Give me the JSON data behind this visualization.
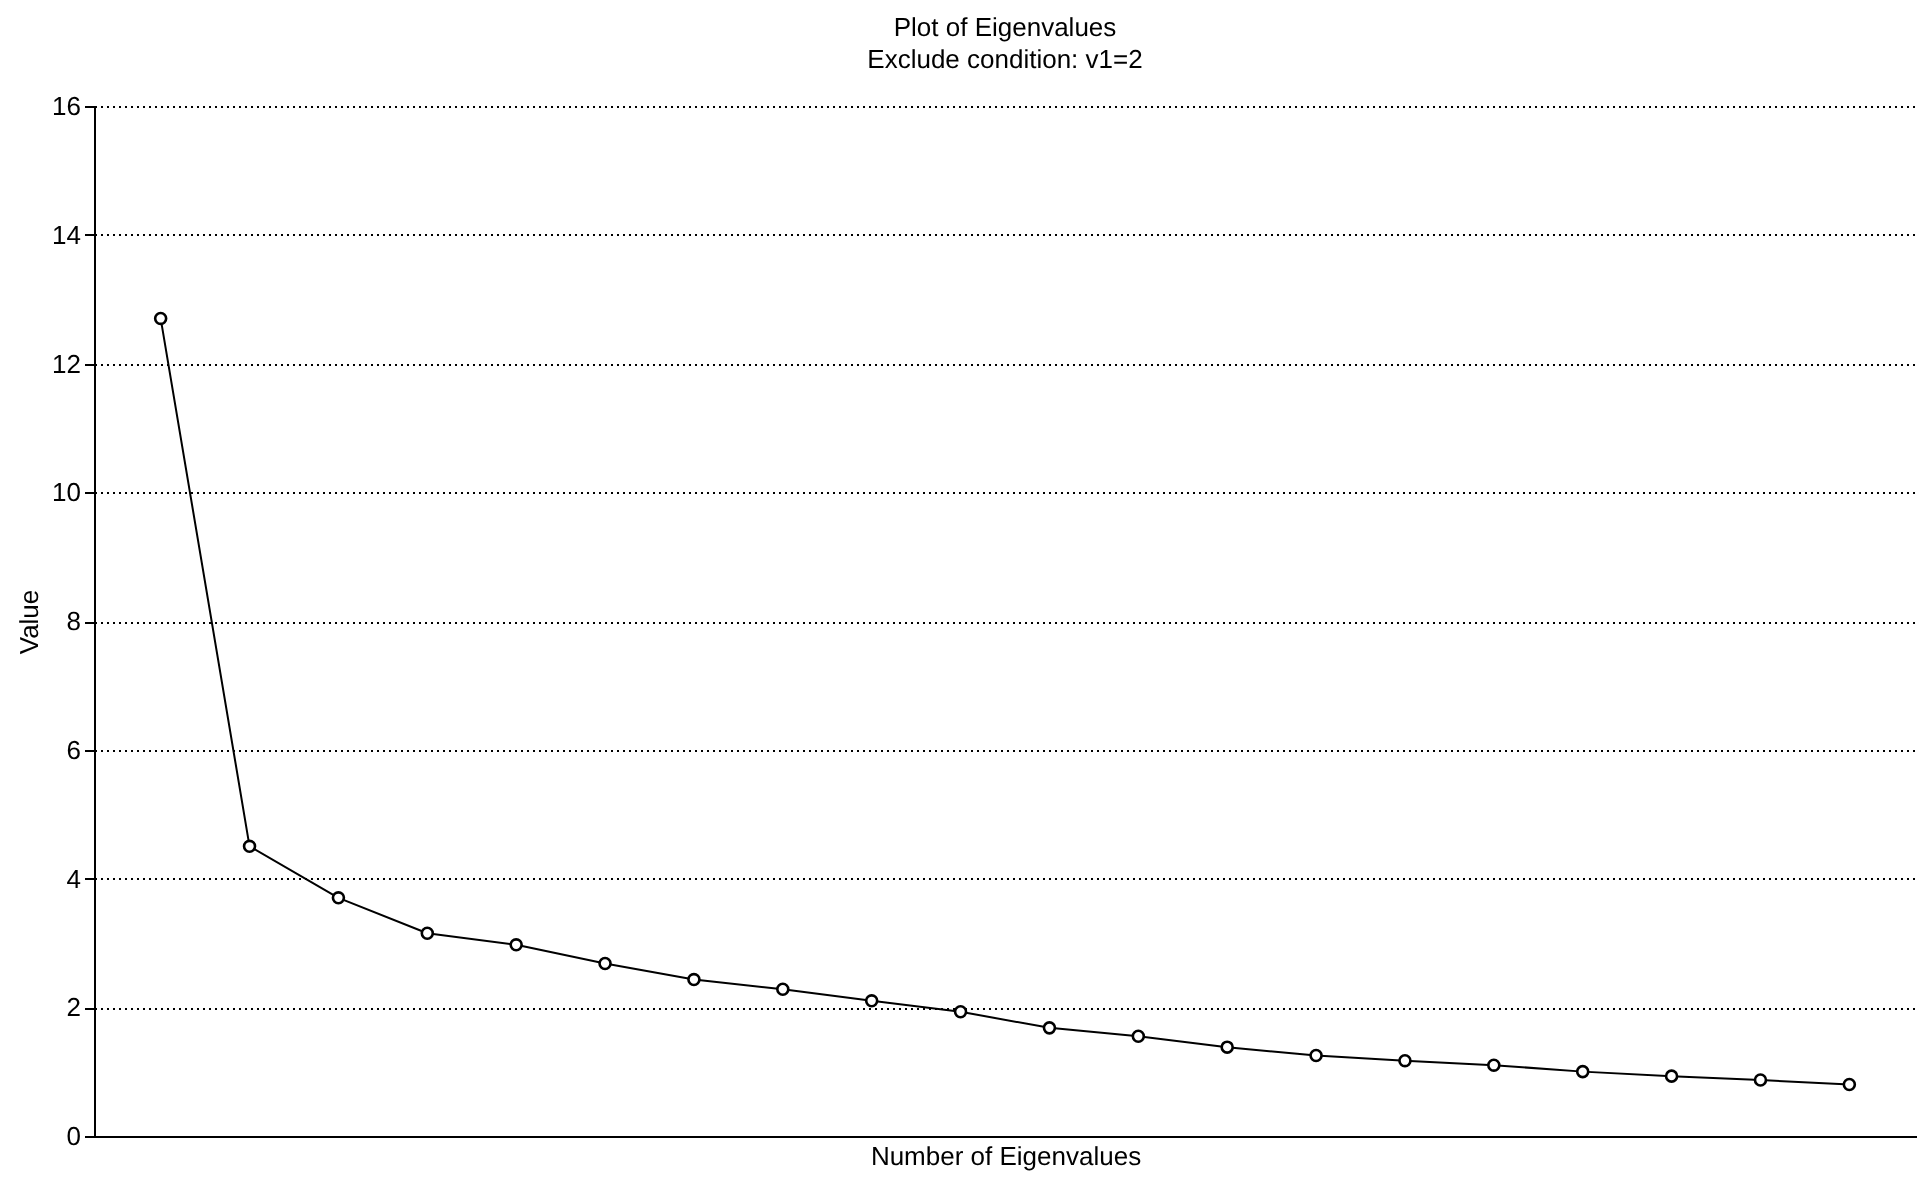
{
  "chart_data": {
    "type": "line",
    "title": "Plot of Eigenvalues",
    "subtitle": "Exclude condition: v1=2",
    "xlabel": "Number of Eigenvalues",
    "ylabel": "Value",
    "categories": [
      null,
      null,
      null,
      null,
      null,
      null,
      null,
      null,
      null,
      null,
      null,
      null,
      null,
      null,
      null,
      null,
      null,
      null,
      null,
      null
    ],
    "series": [
      {
        "color": "#000000",
        "values": [
          12.7,
          4.5,
          3.7,
          3.15,
          2.97,
          2.68,
          2.43,
          2.28,
          2.1,
          1.93,
          1.68,
          1.55,
          1.38,
          1.25,
          1.17,
          1.1,
          1.0,
          0.93,
          0.87,
          0.8
        ]
      }
    ],
    "ylim": [
      0,
      16
    ],
    "yticks": [
      0,
      2,
      4,
      6,
      8,
      10,
      12,
      14,
      16
    ],
    "grid": "y",
    "tick_labels": "y",
    "marker": "circle",
    "line_style": "solid"
  }
}
